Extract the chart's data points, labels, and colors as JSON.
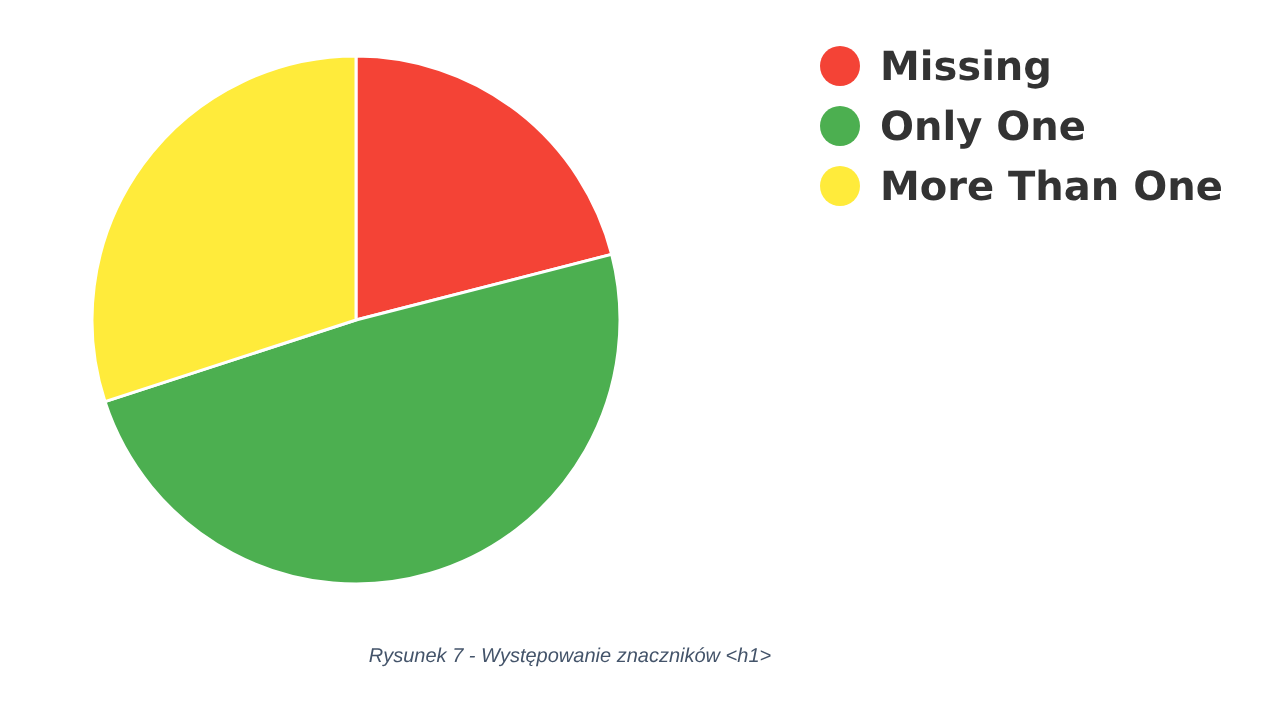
{
  "chart_data": {
    "type": "pie",
    "categories": [
      "Missing",
      "Only One",
      "More Than One"
    ],
    "values": [
      21,
      49,
      30
    ],
    "colors": [
      "#f44336",
      "#4caf50",
      "#ffeb3b"
    ],
    "legend": "top right",
    "annotations": [
      "Rysunek 7 - Występowanie znaczników <h1>"
    ]
  }
}
